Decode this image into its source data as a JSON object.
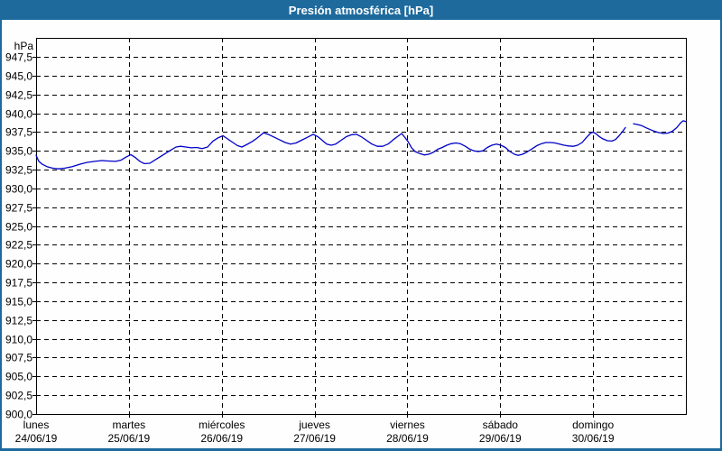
{
  "window": {
    "title": "Presión atmosférica [hPa]",
    "colors": {
      "titlebar": "#1e6a9d",
      "frame": "#1e6a9d",
      "title_text": "#ffffff",
      "background": "#fdfefd",
      "plot_border": "#000000",
      "grid": "#000000",
      "line": "#0000c8",
      "text": "#000000"
    }
  },
  "chart_data": {
    "type": "line",
    "title": "Presión atmosférica [hPa]",
    "y_unit_label": "hPa",
    "xlabel": "",
    "ylabel": "hPa",
    "ylim": [
      900,
      950
    ],
    "grid": "dashed",
    "legend": "none",
    "y_ticks": [
      947.5,
      945.0,
      942.5,
      940.0,
      937.5,
      935.0,
      932.5,
      930.0,
      927.5,
      925.0,
      922.5,
      920.0,
      917.5,
      915.0,
      912.5,
      910.0,
      907.5,
      905.0,
      902.5,
      900.0
    ],
    "y_tick_labels": [
      "947,5",
      "945,0",
      "942,5",
      "940,0",
      "937,5",
      "935,0",
      "932,5",
      "930,0",
      "927,5",
      "925,0",
      "922,5",
      "920,0",
      "917,5",
      "915,0",
      "912,5",
      "910,0",
      "907,5",
      "905,0",
      "902,5",
      "900,0"
    ],
    "x_categories": [
      {
        "day": "lunes",
        "date": "24/06/19"
      },
      {
        "day": "martes",
        "date": "25/06/19"
      },
      {
        "day": "miércoles",
        "date": "26/06/19"
      },
      {
        "day": "jueves",
        "date": "27/06/19"
      },
      {
        "day": "viernes",
        "date": "28/06/19"
      },
      {
        "day": "sábado",
        "date": "29/06/19"
      },
      {
        "day": "domingo",
        "date": "30/06/19"
      }
    ],
    "x_unit": "days since 24/06/19 00:00",
    "series": [
      {
        "name": "Presión atmosférica",
        "color": "#0000c8",
        "segments": [
          [
            [
              0.0,
              934.4
            ],
            [
              0.029,
              933.6
            ],
            [
              0.068,
              933.2
            ],
            [
              0.117,
              932.9
            ],
            [
              0.175,
              932.7
            ],
            [
              0.243,
              932.6
            ],
            [
              0.311,
              932.7
            ],
            [
              0.389,
              932.9
            ],
            [
              0.467,
              933.2
            ],
            [
              0.544,
              933.45
            ],
            [
              0.632,
              933.6
            ],
            [
              0.71,
              933.7
            ],
            [
              0.778,
              933.65
            ],
            [
              0.856,
              933.6
            ],
            [
              0.914,
              933.75
            ],
            [
              0.972,
              934.2
            ],
            [
              1.021,
              934.5
            ],
            [
              1.069,
              934.1
            ],
            [
              1.118,
              933.6
            ],
            [
              1.167,
              933.3
            ],
            [
              1.225,
              933.35
            ],
            [
              1.283,
              933.8
            ],
            [
              1.361,
              934.4
            ],
            [
              1.439,
              935.0
            ],
            [
              1.507,
              935.5
            ],
            [
              1.556,
              935.6
            ],
            [
              1.614,
              935.5
            ],
            [
              1.672,
              935.4
            ],
            [
              1.731,
              935.45
            ],
            [
              1.789,
              935.3
            ],
            [
              1.847,
              935.5
            ],
            [
              1.906,
              936.3
            ],
            [
              1.964,
              936.75
            ],
            [
              2.013,
              937.0
            ],
            [
              2.061,
              936.6
            ],
            [
              2.12,
              936.1
            ],
            [
              2.168,
              935.7
            ],
            [
              2.217,
              935.5
            ],
            [
              2.265,
              935.8
            ],
            [
              2.324,
              936.2
            ],
            [
              2.382,
              936.7
            ],
            [
              2.45,
              937.4
            ],
            [
              2.508,
              937.15
            ],
            [
              2.567,
              936.8
            ],
            [
              2.625,
              936.45
            ],
            [
              2.683,
              936.1
            ],
            [
              2.742,
              935.9
            ],
            [
              2.8,
              936.05
            ],
            [
              2.858,
              936.4
            ],
            [
              2.917,
              936.75
            ],
            [
              2.985,
              937.2
            ],
            [
              3.033,
              936.9
            ],
            [
              3.082,
              936.4
            ],
            [
              3.131,
              935.9
            ],
            [
              3.179,
              935.75
            ],
            [
              3.228,
              935.9
            ],
            [
              3.286,
              936.4
            ],
            [
              3.344,
              936.9
            ],
            [
              3.403,
              937.15
            ],
            [
              3.451,
              937.2
            ],
            [
              3.5,
              936.9
            ],
            [
              3.558,
              936.4
            ],
            [
              3.617,
              935.9
            ],
            [
              3.675,
              935.6
            ],
            [
              3.733,
              935.6
            ],
            [
              3.792,
              935.9
            ],
            [
              3.85,
              936.5
            ],
            [
              3.899,
              936.95
            ],
            [
              3.938,
              937.3
            ],
            [
              3.977,
              936.7
            ],
            [
              4.006,
              936.25
            ],
            [
              4.045,
              935.4
            ],
            [
              4.083,
              934.9
            ],
            [
              4.132,
              934.65
            ],
            [
              4.181,
              934.45
            ],
            [
              4.229,
              934.55
            ],
            [
              4.278,
              934.8
            ],
            [
              4.326,
              935.2
            ],
            [
              4.375,
              935.45
            ],
            [
              4.424,
              935.75
            ],
            [
              4.472,
              935.95
            ],
            [
              4.521,
              936.05
            ],
            [
              4.569,
              935.95
            ],
            [
              4.618,
              935.65
            ],
            [
              4.667,
              935.25
            ],
            [
              4.715,
              935.0
            ],
            [
              4.764,
              934.9
            ],
            [
              4.813,
              935.0
            ],
            [
              4.861,
              935.45
            ],
            [
              4.91,
              935.75
            ],
            [
              4.958,
              935.9
            ],
            [
              5.007,
              935.75
            ],
            [
              5.056,
              935.45
            ],
            [
              5.104,
              934.9
            ],
            [
              5.153,
              934.55
            ],
            [
              5.192,
              934.4
            ],
            [
              5.24,
              934.55
            ],
            [
              5.289,
              934.85
            ],
            [
              5.347,
              935.3
            ],
            [
              5.396,
              935.7
            ],
            [
              5.444,
              935.95
            ],
            [
              5.493,
              936.1
            ],
            [
              5.542,
              936.1
            ],
            [
              5.59,
              936.05
            ],
            [
              5.639,
              935.9
            ],
            [
              5.688,
              935.75
            ],
            [
              5.736,
              935.65
            ],
            [
              5.785,
              935.6
            ],
            [
              5.833,
              935.75
            ],
            [
              5.882,
              936.1
            ],
            [
              5.931,
              936.8
            ],
            [
              5.969,
              937.3
            ],
            [
              5.999,
              937.5
            ],
            [
              6.028,
              937.3
            ],
            [
              6.067,
              936.9
            ],
            [
              6.106,
              936.6
            ],
            [
              6.154,
              936.35
            ],
            [
              6.203,
              936.3
            ],
            [
              6.242,
              936.5
            ],
            [
              6.281,
              937.0
            ],
            [
              6.319,
              937.6
            ],
            [
              6.349,
              938.1
            ]
          ],
          [
            [
              6.436,
              938.6
            ],
            [
              6.475,
              938.5
            ],
            [
              6.524,
              938.35
            ],
            [
              6.582,
              938.0
            ],
            [
              6.64,
              937.7
            ],
            [
              6.699,
              937.45
            ],
            [
              6.757,
              937.3
            ],
            [
              6.806,
              937.35
            ],
            [
              6.854,
              937.6
            ],
            [
              6.903,
              938.1
            ],
            [
              6.942,
              938.7
            ],
            [
              6.971,
              939.0
            ],
            [
              7.0,
              938.9
            ]
          ]
        ]
      }
    ]
  }
}
